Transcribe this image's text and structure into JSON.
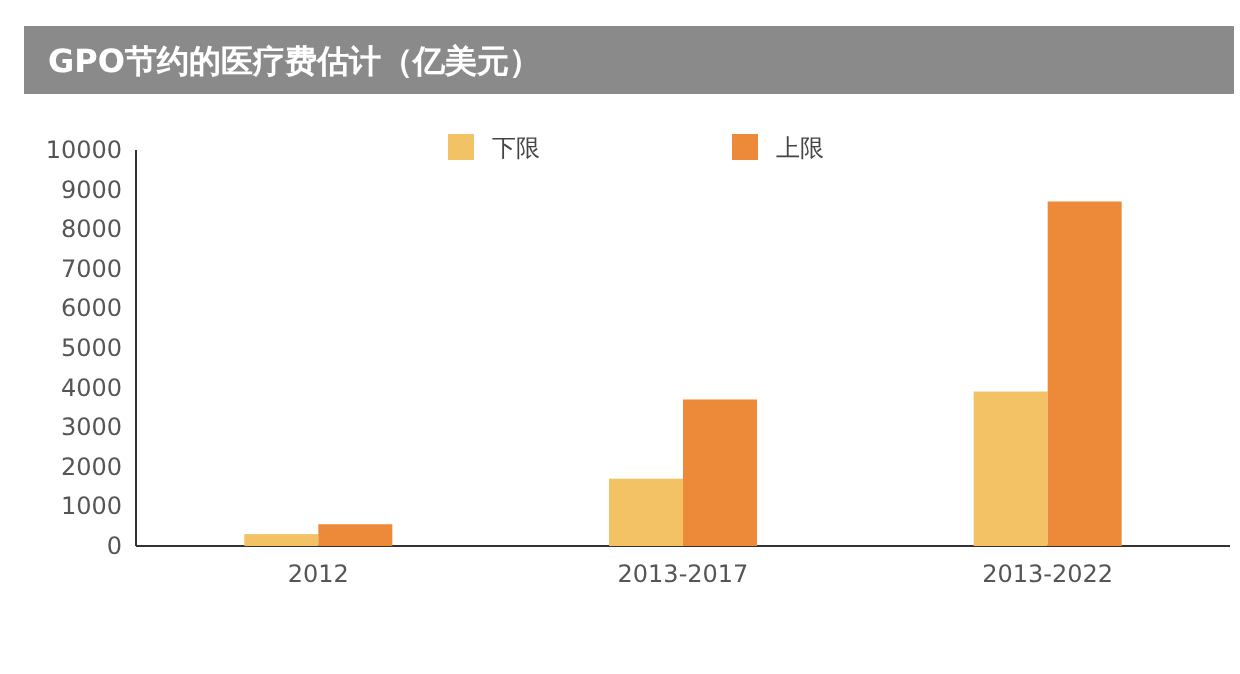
{
  "chart_data": {
    "type": "bar",
    "title": "GPO节约的医疗费估计（亿美元）",
    "categories": [
      "2012",
      "2013-2017",
      "2013-2022"
    ],
    "series": [
      {
        "name": "下限",
        "color": "#f2c265",
        "values": [
          300,
          1700,
          3900
        ]
      },
      {
        "name": "上限",
        "color": "#ec8a3a",
        "values": [
          550,
          3700,
          8700
        ]
      }
    ],
    "ylim": [
      0,
      10000
    ],
    "yticks": [
      0,
      1000,
      2000,
      3000,
      4000,
      5000,
      6000,
      7000,
      8000,
      9000,
      10000
    ],
    "legend": "top"
  }
}
